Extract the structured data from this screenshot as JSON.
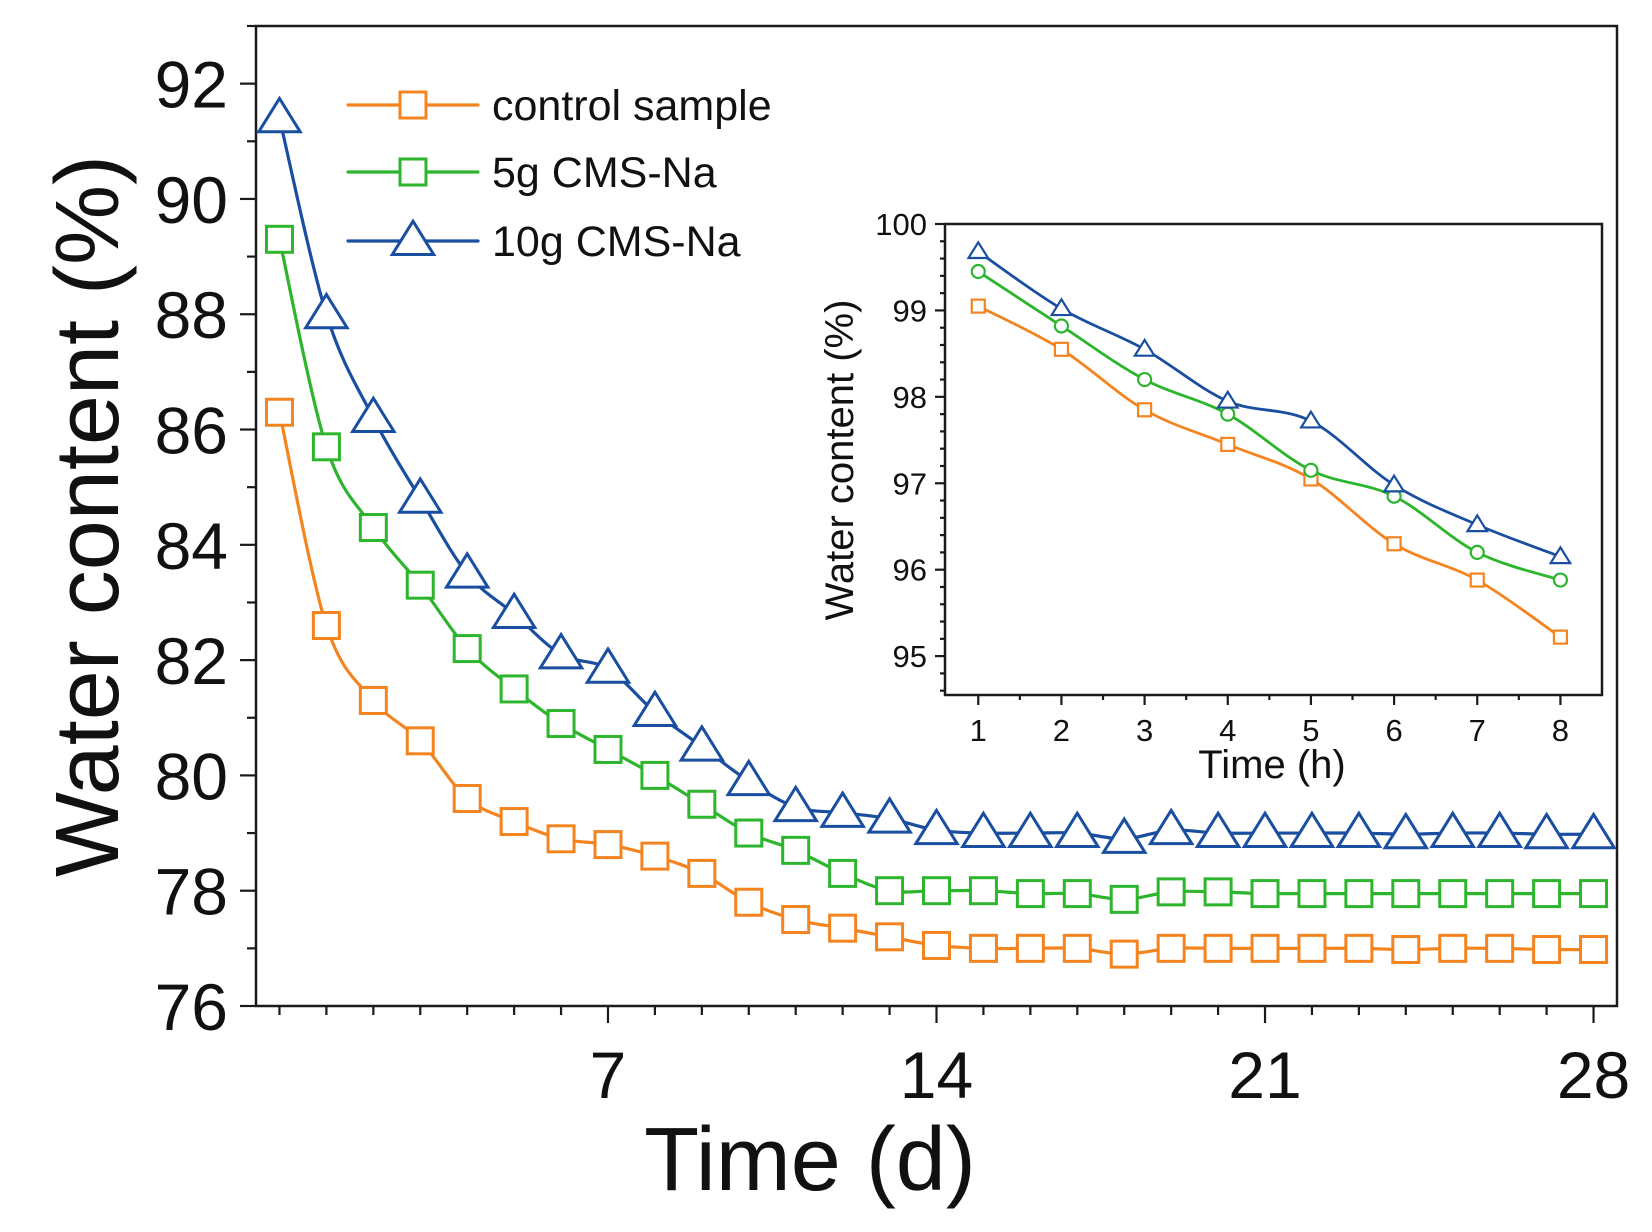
{
  "chart_data": [
    {
      "type": "line",
      "xlabel": "Time (d)",
      "ylabel": "Water content (%)",
      "xlim": [
        -0.5,
        28.5
      ],
      "ylim": [
        76,
        93
      ],
      "xticks": [
        7,
        14,
        21,
        28
      ],
      "yticks": [
        76,
        78,
        80,
        82,
        84,
        86,
        88,
        90,
        92
      ],
      "grid": false,
      "legend_position": "top-left",
      "x": [
        0,
        1,
        2,
        3,
        4,
        5,
        6,
        7,
        8,
        9,
        10,
        11,
        12,
        13,
        14,
        15,
        16,
        17,
        18,
        19,
        20,
        21,
        22,
        23,
        24,
        25,
        26,
        27,
        28
      ],
      "series": [
        {
          "name": "control sample",
          "color": "#f4841f",
          "marker": "square",
          "values": [
            86.3,
            82.6,
            81.3,
            80.6,
            79.6,
            79.2,
            78.9,
            78.8,
            78.6,
            78.3,
            77.8,
            77.5,
            77.35,
            77.2,
            77.05,
            77.0,
            77.0,
            77.0,
            76.9,
            77.0,
            77.0,
            77.0,
            77.0,
            77.0,
            76.98,
            77.0,
            77.0,
            76.98,
            76.98
          ]
        },
        {
          "name": "5g CMS-Na",
          "color": "#2db52d",
          "marker": "square",
          "values": [
            89.3,
            85.7,
            84.3,
            83.3,
            82.2,
            81.5,
            80.9,
            80.45,
            80.0,
            79.5,
            79.0,
            78.7,
            78.3,
            78.0,
            78.0,
            78.0,
            77.95,
            77.95,
            77.85,
            77.98,
            77.98,
            77.95,
            77.95,
            77.95,
            77.95,
            77.95,
            77.95,
            77.95,
            77.95
          ]
        },
        {
          "name": "10g CMS-Na",
          "color": "#1a4ea1",
          "marker": "triangle",
          "values": [
            91.4,
            88.0,
            86.2,
            84.8,
            83.5,
            82.8,
            82.1,
            81.85,
            81.1,
            80.5,
            79.9,
            79.45,
            79.35,
            79.25,
            79.05,
            79.0,
            79.0,
            79.0,
            78.9,
            79.05,
            79.0,
            79.0,
            79.0,
            79.0,
            78.98,
            79.0,
            79.0,
            78.98,
            78.98
          ]
        }
      ]
    },
    {
      "type": "line",
      "xlabel": "Time (h)",
      "ylabel": "Water content (%)",
      "xlim": [
        0.6,
        8.5
      ],
      "ylim": [
        94.55,
        100
      ],
      "xticks": [
        1,
        2,
        3,
        4,
        5,
        6,
        7,
        8
      ],
      "yticks": [
        95,
        96,
        97,
        98,
        99,
        100
      ],
      "grid": false,
      "x": [
        1,
        2,
        3,
        4,
        5,
        6,
        7,
        8
      ],
      "series": [
        {
          "name": "control sample",
          "color": "#f4841f",
          "marker": "square",
          "values": [
            99.05,
            98.55,
            97.85,
            97.45,
            97.05,
            96.3,
            95.88,
            95.22
          ]
        },
        {
          "name": "5g CMS-Na",
          "color": "#2db52d",
          "marker": "circle",
          "values": [
            99.45,
            98.82,
            98.2,
            97.8,
            97.15,
            96.85,
            96.2,
            95.88
          ]
        },
        {
          "name": "10g CMS-Na",
          "color": "#1a4ea1",
          "marker": "triangle",
          "values": [
            99.68,
            99.02,
            98.55,
            97.95,
            97.72,
            96.98,
            96.52,
            96.15
          ]
        }
      ]
    }
  ]
}
